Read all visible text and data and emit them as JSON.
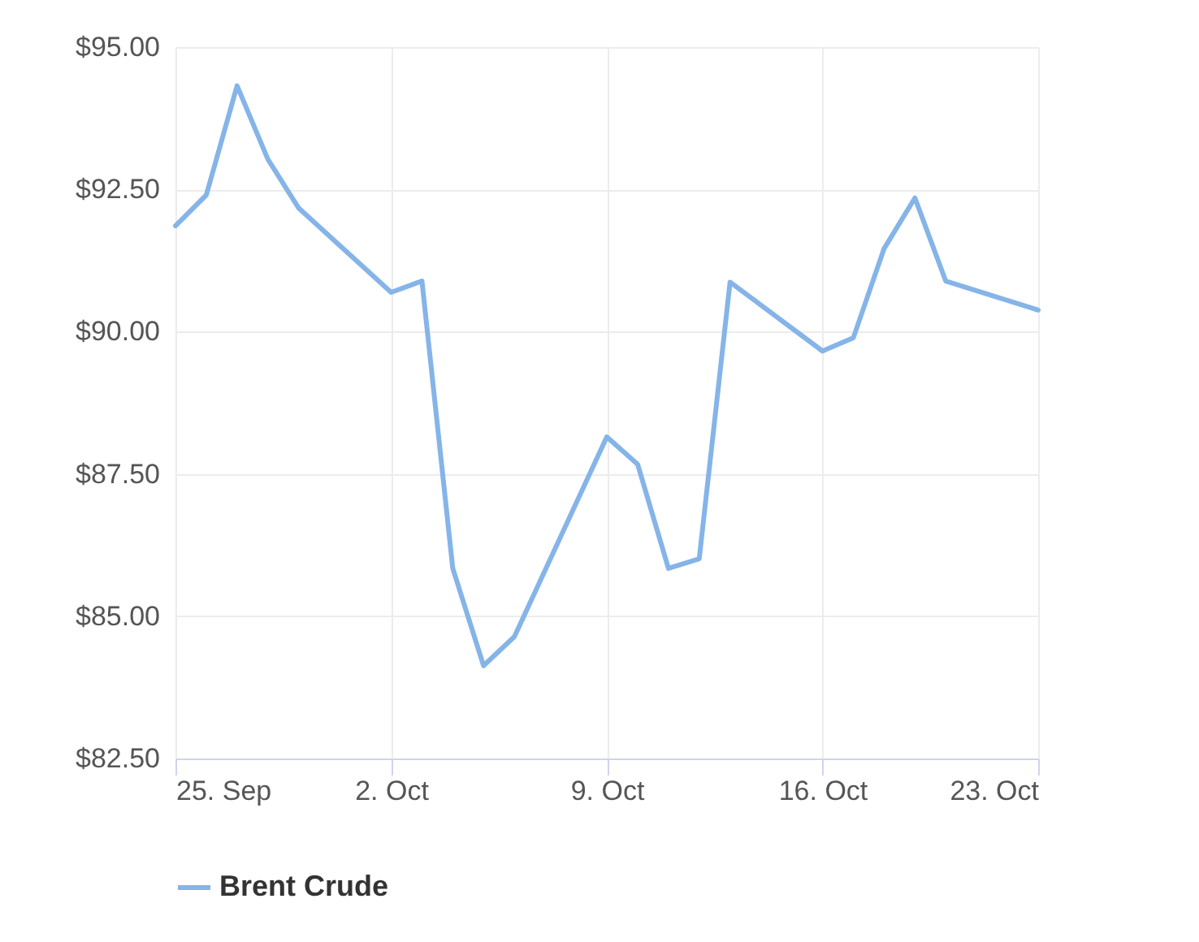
{
  "chart_data": {
    "type": "line",
    "x": [
      "--09-25",
      "--09-26",
      "--09-27",
      "--09-28",
      "--09-29",
      "--10-02",
      "--10-03",
      "--10-04",
      "--10-05",
      "--10-06",
      "--10-09",
      "--10-10",
      "--10-11",
      "--10-12",
      "--10-13",
      "--10-16",
      "--10-17",
      "--10-18",
      "--10-19",
      "--10-20",
      "--10-23"
    ],
    "series": [
      {
        "name": "Brent Crude",
        "color": "#85b4e8",
        "values": [
          91.86,
          92.4,
          94.32,
          93.03,
          92.17,
          90.69,
          90.89,
          85.84,
          84.13,
          84.64,
          88.15,
          87.67,
          85.84,
          86.01,
          90.87,
          89.66,
          89.89,
          91.46,
          92.35,
          90.89,
          90.38
        ]
      }
    ],
    "xlim": [
      "--09-25",
      "--10-23"
    ],
    "xticks": [
      {
        "value": "--09-25",
        "label": "25. Sep"
      },
      {
        "value": "--10-02",
        "label": "2. Oct"
      },
      {
        "value": "--10-09",
        "label": "9. Oct"
      },
      {
        "value": "--10-16",
        "label": "16. Oct"
      },
      {
        "value": "--10-23",
        "label": "23. Oct"
      }
    ],
    "ylim": [
      82.5,
      95
    ],
    "yticks": [
      {
        "value": 82.5,
        "label": "$82.50"
      },
      {
        "value": 85,
        "label": "$85.00"
      },
      {
        "value": 87.5,
        "label": "$87.50"
      },
      {
        "value": 90,
        "label": "$90.00"
      },
      {
        "value": 92.5,
        "label": "$92.50"
      },
      {
        "value": 95,
        "label": "$95.00"
      }
    ],
    "grid": true,
    "legend": "bottom",
    "marker": "none",
    "line_style": "solid"
  }
}
